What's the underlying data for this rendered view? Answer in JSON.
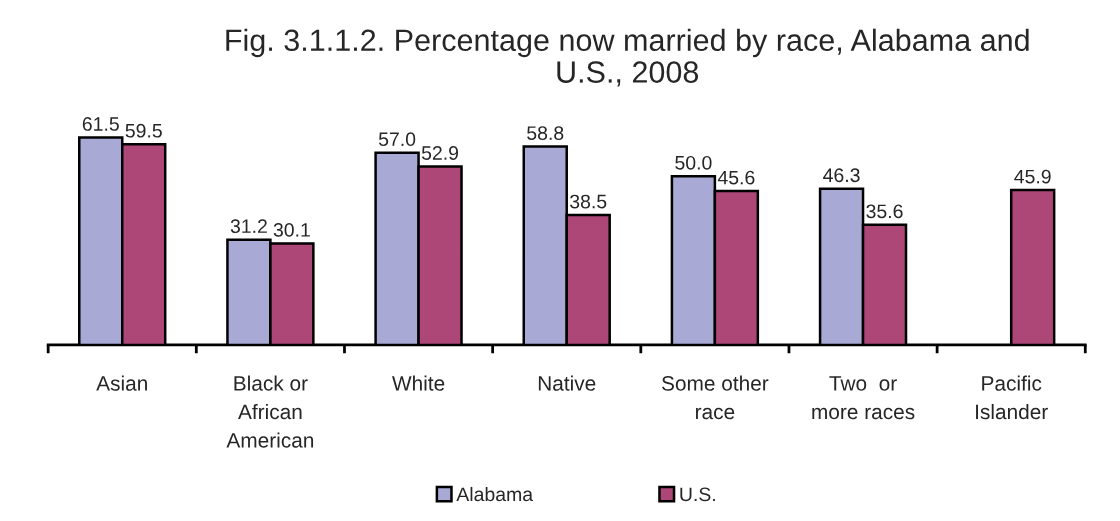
{
  "chart_data": {
    "type": "bar",
    "title": "Fig. 3.1.1.2. Percentage now married by race, Alabama and\nU.S., 2008",
    "categories": [
      "Asian",
      "Black or\nAfrican\nAmerican",
      "White",
      "Native",
      "Some other\nrace",
      "Two  or\nmore races",
      "Pacific\nIslander"
    ],
    "series": [
      {
        "name": "Alabama",
        "color": "#a9a9d6",
        "values": [
          61.5,
          31.2,
          57.0,
          58.8,
          50.0,
          46.3,
          null
        ],
        "value_labels": [
          "61.5",
          "31.2",
          "57.0",
          "58.8",
          "50.0",
          "46.3",
          null
        ]
      },
      {
        "name": "U.S.",
        "color": "#ad4778",
        "values": [
          59.5,
          30.1,
          52.9,
          38.5,
          45.6,
          35.6,
          45.9
        ],
        "value_labels": [
          "59.5",
          "30.1",
          "52.9",
          "38.5",
          "45.6",
          "35.6",
          "45.9"
        ]
      }
    ],
    "legend": "bottom",
    "tick_labels": "x"
  }
}
